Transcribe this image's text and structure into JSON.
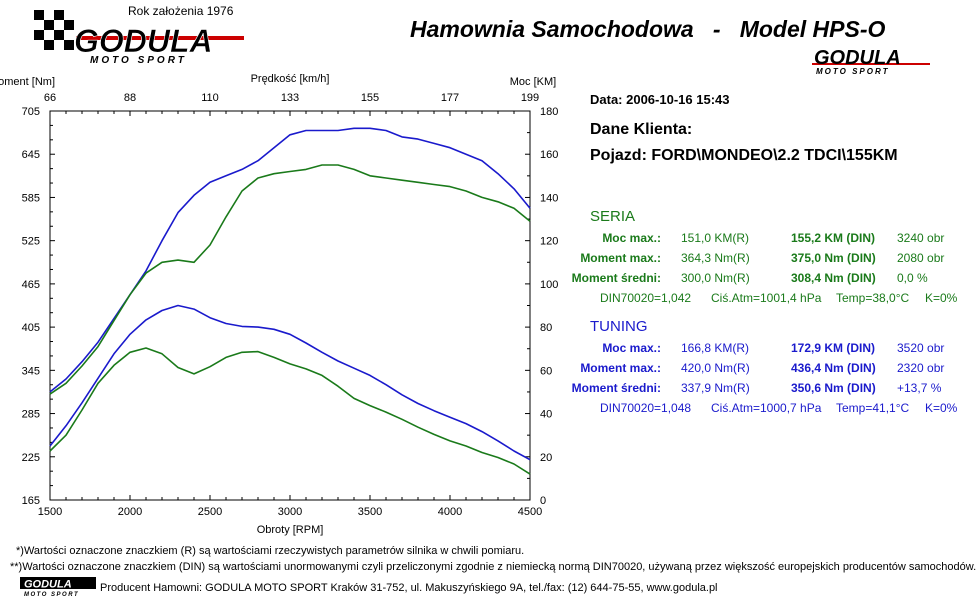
{
  "header": {
    "founded": "Rok założenia 1976",
    "logo_text": "GODULA",
    "logo_sub": "MOTO SPORT",
    "title": "Hamownia Samochodowa   -   Model HPS-O"
  },
  "info": {
    "date": "Data: 2006-10-16  15:43",
    "client_title": "Dane Klienta:",
    "vehicle": "Pojazd: FORD\\MONDEO\\2.2 TDCI\\155KM"
  },
  "seria": {
    "title": "SERIA",
    "color": "#1a7a1a",
    "rows": [
      {
        "label": "Moc max.:",
        "r": "151,0 KM(R)",
        "din": "155,2 KM (DIN)",
        "extra": "3240 obr"
      },
      {
        "label": "Moment max.:",
        "r": "364,3 Nm(R)",
        "din": "375,0 Nm (DIN)",
        "extra": "2080 obr"
      },
      {
        "label": "Moment średni:",
        "r": "300,0 Nm(R)",
        "din": "308,4 Nm (DIN)",
        "extra": "0,0 %"
      }
    ],
    "din": "DIN70020=1,042",
    "atm": "Ciś.Atm=1001,4 hPa",
    "temp": "Temp=38,0°C",
    "k": "K=0%"
  },
  "tuning": {
    "title": "TUNING",
    "color": "#1a1acc",
    "rows": [
      {
        "label": "Moc max.:",
        "r": "166,8 KM(R)",
        "din": "172,9 KM (DIN)",
        "extra": "3520 obr"
      },
      {
        "label": "Moment max.:",
        "r": "420,0 Nm(R)",
        "din": "436,4 Nm (DIN)",
        "extra": "2320 obr"
      },
      {
        "label": "Moment średni:",
        "r": "337,9 Nm(R)",
        "din": "350,6 Nm (DIN)",
        "extra": "+13,7 %"
      }
    ],
    "din": "DIN70020=1,048",
    "atm": "Ciś.Atm=1000,7 hPa",
    "temp": "Temp=41,1°C",
    "k": "K=0%"
  },
  "footer": {
    "note1": "*)Wartości oznaczone znaczkiem (R) są wartościami rzeczywistych parametrów silnika w chwili pomiaru.",
    "note2": "**)Wartości oznaczone znaczkiem (DIN) są wartościami unormowanymi czyli przeliczonymi zgodnie z niemiecką normą DIN70020, używaną przez większość europejskich producentów samochodów.",
    "producer": "Producent Hamowni: GODULA MOTO SPORT Kraków 31-752, ul. Makuszyńskiego 9A, tel./fax: (12) 644-75-55, www.godula.pl"
  },
  "chart_data": {
    "type": "line",
    "xlabel": "Obroty [RPM]",
    "ylabel_left": "Moment [Nm]",
    "ylabel_right": "Moc [KM]",
    "top_axis_label": "Prędkość [km/h]",
    "xlim": [
      1500,
      4500
    ],
    "ylim_left": [
      165,
      705
    ],
    "ylim_right": [
      0,
      180
    ],
    "x_ticks": [
      "1500",
      "2000",
      "2500",
      "3000",
      "3500",
      "4000",
      "4500"
    ],
    "top_ticks": [
      "66",
      "88",
      "110",
      "133",
      "155",
      "177",
      "199"
    ],
    "left_ticks": [
      "705",
      "645",
      "585",
      "525",
      "465",
      "405",
      "345",
      "285",
      "225",
      "165"
    ],
    "right_ticks": [
      "180",
      "160",
      "140",
      "120",
      "100",
      "80",
      "60",
      "40",
      "20",
      "0"
    ],
    "grid": false,
    "series": [
      {
        "name": "TUNING",
        "color": "#1a1acc",
        "axis": "right",
        "x": [
          1500,
          1600,
          1700,
          1800,
          1900,
          2000,
          2100,
          2200,
          2300,
          2400,
          2500,
          2600,
          2700,
          2800,
          2900,
          3000,
          3100,
          3200,
          3300,
          3400,
          3500,
          3600,
          3700,
          3800,
          3900,
          4000,
          4100,
          4200,
          4300,
          4400,
          4500
        ],
        "y": [
          50,
          56,
          64,
          73,
          84,
          95,
          106,
          120,
          133,
          141,
          147,
          150,
          153,
          157,
          163,
          169,
          171,
          171,
          171,
          172,
          172,
          171,
          168,
          167,
          165,
          163,
          160,
          157,
          151,
          144,
          135
        ]
      },
      {
        "name": "SERIA",
        "color": "#1a7a1a",
        "axis": "right",
        "x": [
          1500,
          1600,
          1700,
          1800,
          1900,
          2000,
          2100,
          2200,
          2300,
          2400,
          2500,
          2600,
          2700,
          2800,
          2900,
          3000,
          3100,
          3200,
          3300,
          3400,
          3500,
          3600,
          3700,
          3800,
          3900,
          4000,
          4100,
          4200,
          4300,
          4400,
          4500
        ],
        "y": [
          49,
          54,
          62,
          71,
          83,
          95,
          105,
          110,
          111,
          110,
          118,
          131,
          143,
          149,
          151,
          152,
          153,
          155,
          155,
          153,
          150,
          149,
          148,
          147,
          146,
          145,
          143,
          140,
          138,
          135,
          129
        ]
      },
      {
        "name": "TUNING",
        "color": "#1a1acc",
        "axis": "left",
        "x": [
          1500,
          1600,
          1700,
          1800,
          1900,
          2000,
          2100,
          2200,
          2300,
          2400,
          2500,
          2600,
          2700,
          2800,
          2900,
          3000,
          3100,
          3200,
          3300,
          3400,
          3500,
          3600,
          3700,
          3800,
          3900,
          4000,
          4100,
          4200,
          4300,
          4400,
          4500
        ],
        "y": [
          240,
          268,
          300,
          334,
          368,
          395,
          415,
          428,
          435,
          430,
          418,
          410,
          406,
          405,
          402,
          395,
          383,
          370,
          358,
          348,
          338,
          325,
          311,
          299,
          289,
          280,
          271,
          260,
          247,
          233,
          221
        ]
      },
      {
        "name": "SERIA",
        "color": "#1a7a1a",
        "axis": "left",
        "x": [
          1500,
          1600,
          1700,
          1800,
          1900,
          2000,
          2100,
          2200,
          2300,
          2400,
          2500,
          2600,
          2700,
          2800,
          2900,
          3000,
          3100,
          3200,
          3300,
          3400,
          3500,
          3600,
          3700,
          3800,
          3900,
          4000,
          4100,
          4200,
          4300,
          4400,
          4500
        ],
        "y": [
          233,
          255,
          290,
          327,
          352,
          370,
          376,
          368,
          349,
          340,
          350,
          363,
          370,
          371,
          363,
          354,
          347,
          338,
          323,
          306,
          296,
          287,
          277,
          266,
          256,
          247,
          240,
          231,
          224,
          215,
          201
        ]
      }
    ]
  }
}
